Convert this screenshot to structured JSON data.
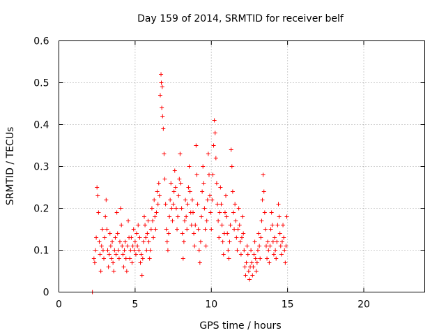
{
  "chart_data": {
    "type": "scatter",
    "title": "Day 159 of 2014, SRMTID for receiver belf",
    "xlabel": "GPS time / hours",
    "ylabel": "SRMTID / TECUs",
    "xlim": [
      0,
      24
    ],
    "ylim": [
      0,
      0.6
    ],
    "x_ticks": [
      0,
      5,
      10,
      15,
      20
    ],
    "y_ticks": [
      0,
      0.1,
      0.2,
      0.3,
      0.4,
      0.5,
      0.6
    ],
    "y_tick_labels": [
      "0",
      "0.1",
      "0.2",
      "0.3",
      "0.4",
      "0.5",
      "0.6"
    ],
    "grid": true,
    "marker": "plus",
    "color": "#ff0000",
    "series": [
      {
        "name": "SRMTID",
        "points": [
          [
            2.2,
            0.0
          ],
          [
            2.3,
            0.08
          ],
          [
            2.35,
            0.07
          ],
          [
            2.4,
            0.1
          ],
          [
            2.45,
            0.13
          ],
          [
            2.5,
            0.25
          ],
          [
            2.55,
            0.23
          ],
          [
            2.6,
            0.19
          ],
          [
            2.65,
            0.12
          ],
          [
            2.7,
            0.09
          ],
          [
            2.75,
            0.05
          ],
          [
            2.8,
            0.11
          ],
          [
            2.85,
            0.15
          ],
          [
            2.9,
            0.1
          ],
          [
            2.95,
            0.08
          ],
          [
            3.0,
            0.13
          ],
          [
            3.05,
            0.18
          ],
          [
            3.1,
            0.22
          ],
          [
            3.15,
            0.15
          ],
          [
            3.2,
            0.1
          ],
          [
            3.25,
            0.06
          ],
          [
            3.3,
            0.09
          ],
          [
            3.35,
            0.14
          ],
          [
            3.4,
            0.11
          ],
          [
            3.45,
            0.08
          ],
          [
            3.5,
            0.12
          ],
          [
            3.55,
            0.07
          ],
          [
            3.6,
            0.05
          ],
          [
            3.65,
            0.1
          ],
          [
            3.7,
            0.13
          ],
          [
            3.75,
            0.09
          ],
          [
            3.8,
            0.19
          ],
          [
            3.85,
            0.14
          ],
          [
            3.9,
            0.1
          ],
          [
            3.95,
            0.08
          ],
          [
            4.0,
            0.12
          ],
          [
            4.05,
            0.2
          ],
          [
            4.1,
            0.16
          ],
          [
            4.15,
            0.11
          ],
          [
            4.2,
            0.09
          ],
          [
            4.25,
            0.06
          ],
          [
            4.3,
            0.1
          ],
          [
            4.35,
            0.12
          ],
          [
            4.4,
            0.08
          ],
          [
            4.45,
            0.05
          ],
          [
            4.5,
            0.11
          ],
          [
            4.55,
            0.17
          ],
          [
            4.6,
            0.13
          ],
          [
            4.65,
            0.08
          ],
          [
            4.7,
            0.1
          ],
          [
            4.75,
            0.13
          ],
          [
            4.8,
            0.07
          ],
          [
            4.85,
            0.11
          ],
          [
            4.9,
            0.15
          ],
          [
            4.95,
            0.1
          ],
          [
            5.0,
            0.12
          ],
          [
            5.05,
            0.09
          ],
          [
            5.1,
            0.14
          ],
          [
            5.15,
            0.11
          ],
          [
            5.2,
            0.16
          ],
          [
            5.25,
            0.1
          ],
          [
            5.3,
            0.13
          ],
          [
            5.35,
            0.07
          ],
          [
            5.4,
            0.09
          ],
          [
            5.45,
            0.04
          ],
          [
            5.5,
            0.08
          ],
          [
            5.55,
            0.12
          ],
          [
            5.6,
            0.18
          ],
          [
            5.65,
            0.16
          ],
          [
            5.7,
            0.13
          ],
          [
            5.75,
            0.1
          ],
          [
            5.8,
            0.14
          ],
          [
            5.85,
            0.17
          ],
          [
            5.9,
            0.12
          ],
          [
            5.95,
            0.08
          ],
          [
            6.0,
            0.1
          ],
          [
            6.05,
            0.15
          ],
          [
            6.1,
            0.2
          ],
          [
            6.15,
            0.17
          ],
          [
            6.2,
            0.13
          ],
          [
            6.25,
            0.22
          ],
          [
            6.3,
            0.18
          ],
          [
            6.35,
            0.15
          ],
          [
            6.4,
            0.19
          ],
          [
            6.45,
            0.24
          ],
          [
            6.5,
            0.21
          ],
          [
            6.55,
            0.26
          ],
          [
            6.6,
            0.23
          ],
          [
            6.65,
            0.47
          ],
          [
            6.7,
            0.52
          ],
          [
            6.72,
            0.5
          ],
          [
            6.75,
            0.44
          ],
          [
            6.78,
            0.49
          ],
          [
            6.8,
            0.42
          ],
          [
            6.85,
            0.39
          ],
          [
            6.9,
            0.33
          ],
          [
            6.95,
            0.27
          ],
          [
            7.0,
            0.21
          ],
          [
            7.05,
            0.15
          ],
          [
            7.1,
            0.12
          ],
          [
            7.15,
            0.1
          ],
          [
            7.2,
            0.14
          ],
          [
            7.25,
            0.18
          ],
          [
            7.3,
            0.22
          ],
          [
            7.35,
            0.26
          ],
          [
            7.4,
            0.2
          ],
          [
            7.45,
            0.17
          ],
          [
            7.5,
            0.21
          ],
          [
            7.55,
            0.24
          ],
          [
            7.6,
            0.29
          ],
          [
            7.65,
            0.25
          ],
          [
            7.7,
            0.2
          ],
          [
            7.75,
            0.15
          ],
          [
            7.8,
            0.18
          ],
          [
            7.85,
            0.23
          ],
          [
            7.9,
            0.27
          ],
          [
            7.95,
            0.33
          ],
          [
            8.0,
            0.26
          ],
          [
            8.05,
            0.2
          ],
          [
            8.1,
            0.14
          ],
          [
            8.15,
            0.08
          ],
          [
            8.2,
            0.12
          ],
          [
            8.25,
            0.17
          ],
          [
            8.3,
            0.22
          ],
          [
            8.35,
            0.18
          ],
          [
            8.4,
            0.15
          ],
          [
            8.45,
            0.21
          ],
          [
            8.5,
            0.25
          ],
          [
            8.55,
            0.3
          ],
          [
            8.6,
            0.24
          ],
          [
            8.65,
            0.19
          ],
          [
            8.7,
            0.16
          ],
          [
            8.75,
            0.22
          ],
          [
            8.8,
            0.19
          ],
          [
            8.85,
            0.14
          ],
          [
            8.9,
            0.11
          ],
          [
            8.95,
            0.16
          ],
          [
            9.0,
            0.35
          ],
          [
            9.05,
            0.28
          ],
          [
            9.1,
            0.21
          ],
          [
            9.15,
            0.15
          ],
          [
            9.2,
            0.1
          ],
          [
            9.25,
            0.07
          ],
          [
            9.3,
            0.12
          ],
          [
            9.35,
            0.18
          ],
          [
            9.4,
            0.24
          ],
          [
            9.45,
            0.3
          ],
          [
            9.5,
            0.26
          ],
          [
            9.55,
            0.2
          ],
          [
            9.6,
            0.15
          ],
          [
            9.65,
            0.11
          ],
          [
            9.7,
            0.17
          ],
          [
            9.75,
            0.22
          ],
          [
            9.8,
            0.33
          ],
          [
            9.85,
            0.28
          ],
          [
            9.9,
            0.23
          ],
          [
            9.95,
            0.19
          ],
          [
            10.0,
            0.15
          ],
          [
            10.05,
            0.22
          ],
          [
            10.1,
            0.28
          ],
          [
            10.15,
            0.35
          ],
          [
            10.2,
            0.41
          ],
          [
            10.25,
            0.38
          ],
          [
            10.3,
            0.32
          ],
          [
            10.35,
            0.26
          ],
          [
            10.4,
            0.21
          ],
          [
            10.45,
            0.17
          ],
          [
            10.5,
            0.13
          ],
          [
            10.55,
            0.19
          ],
          [
            10.6,
            0.25
          ],
          [
            10.65,
            0.21
          ],
          [
            10.7,
            0.16
          ],
          [
            10.75,
            0.12
          ],
          [
            10.8,
            0.09
          ],
          [
            10.85,
            0.14
          ],
          [
            10.9,
            0.19
          ],
          [
            10.95,
            0.23
          ],
          [
            11.0,
            0.18
          ],
          [
            11.05,
            0.14
          ],
          [
            11.1,
            0.1
          ],
          [
            11.15,
            0.08
          ],
          [
            11.2,
            0.12
          ],
          [
            11.25,
            0.16
          ],
          [
            11.3,
            0.34
          ],
          [
            11.35,
            0.3
          ],
          [
            11.4,
            0.24
          ],
          [
            11.45,
            0.19
          ],
          [
            11.5,
            0.15
          ],
          [
            11.55,
            0.21
          ],
          [
            11.6,
            0.17
          ],
          [
            11.65,
            0.13
          ],
          [
            11.7,
            0.1
          ],
          [
            11.75,
            0.15
          ],
          [
            11.8,
            0.2
          ],
          [
            11.85,
            0.16
          ],
          [
            11.9,
            0.12
          ],
          [
            11.95,
            0.09
          ],
          [
            12.0,
            0.13
          ],
          [
            12.05,
            0.18
          ],
          [
            12.1,
            0.14
          ],
          [
            12.15,
            0.1
          ],
          [
            12.2,
            0.06
          ],
          [
            12.25,
            0.04
          ],
          [
            12.3,
            0.07
          ],
          [
            12.35,
            0.11
          ],
          [
            12.4,
            0.09
          ],
          [
            12.45,
            0.05
          ],
          [
            12.5,
            0.03
          ],
          [
            12.55,
            0.06
          ],
          [
            12.6,
            0.1
          ],
          [
            12.65,
            0.07
          ],
          [
            12.7,
            0.04
          ],
          [
            12.75,
            0.06
          ],
          [
            12.8,
            0.09
          ],
          [
            12.85,
            0.12
          ],
          [
            12.9,
            0.08
          ],
          [
            12.95,
            0.05
          ],
          [
            13.0,
            0.07
          ],
          [
            13.05,
            0.1
          ],
          [
            13.1,
            0.14
          ],
          [
            13.15,
            0.11
          ],
          [
            13.2,
            0.08
          ],
          [
            13.25,
            0.13
          ],
          [
            13.3,
            0.17
          ],
          [
            13.35,
            0.22
          ],
          [
            13.4,
            0.28
          ],
          [
            13.45,
            0.24
          ],
          [
            13.5,
            0.19
          ],
          [
            13.55,
            0.15
          ],
          [
            13.6,
            0.11
          ],
          [
            13.65,
            0.08
          ],
          [
            13.7,
            0.12
          ],
          [
            13.75,
            0.1
          ],
          [
            13.8,
            0.07
          ],
          [
            13.85,
            0.11
          ],
          [
            13.9,
            0.15
          ],
          [
            13.95,
            0.19
          ],
          [
            14.0,
            0.16
          ],
          [
            14.05,
            0.12
          ],
          [
            14.1,
            0.09
          ],
          [
            14.15,
            0.13
          ],
          [
            14.2,
            0.1
          ],
          [
            14.25,
            0.08
          ],
          [
            14.3,
            0.12
          ],
          [
            14.35,
            0.16
          ],
          [
            14.4,
            0.21
          ],
          [
            14.45,
            0.18
          ],
          [
            14.5,
            0.14
          ],
          [
            14.55,
            0.11
          ],
          [
            14.6,
            0.09
          ],
          [
            14.65,
            0.12
          ],
          [
            14.7,
            0.16
          ],
          [
            14.75,
            0.13
          ],
          [
            14.8,
            0.1
          ],
          [
            14.85,
            0.07
          ],
          [
            14.9,
            0.11
          ],
          [
            14.95,
            0.18
          ]
        ]
      }
    ]
  }
}
